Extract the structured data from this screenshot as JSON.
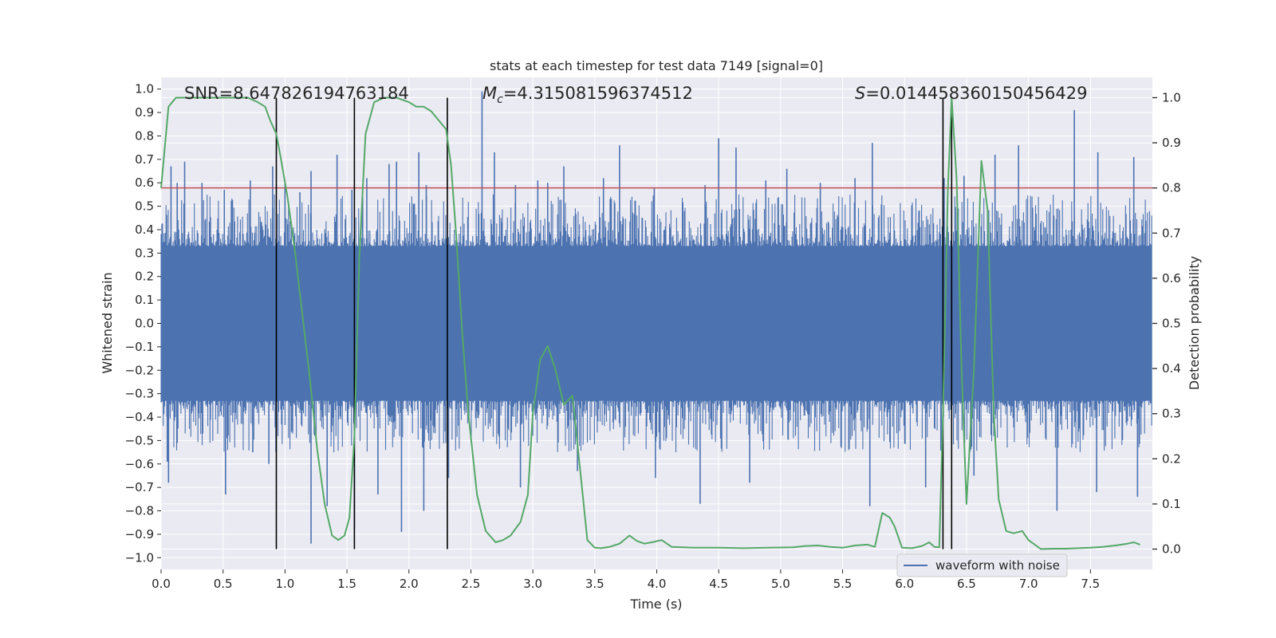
{
  "chart_data": {
    "type": "line",
    "title": "stats at each timestep for test data 7149 [signal=0]",
    "xlabel": "Time (s)",
    "ylabel_left": "Whitened strain",
    "ylabel_right": "Detection probability",
    "xlim": [
      0.0,
      8.0
    ],
    "ylim_left": [
      -1.05,
      1.05
    ],
    "ylim_right": [
      -0.045,
      1.045
    ],
    "x_ticks": [
      "0.0",
      "0.5",
      "1.0",
      "1.5",
      "2.0",
      "2.5",
      "3.0",
      "3.5",
      "4.0",
      "4.5",
      "5.0",
      "5.5",
      "6.0",
      "6.5",
      "7.0",
      "7.5"
    ],
    "y_ticks_left": [
      "1.0",
      "0.9",
      "0.8",
      "0.7",
      "0.6",
      "0.5",
      "0.4",
      "0.3",
      "0.2",
      "0.1",
      "0.0",
      "−0.1",
      "−0.2",
      "−0.3",
      "−0.4",
      "−0.5",
      "−0.6",
      "−0.7",
      "−0.8",
      "−0.9",
      "−1.0"
    ],
    "y_ticks_right": [
      "1.0",
      "0.9",
      "0.8",
      "0.7",
      "0.6",
      "0.5",
      "0.4",
      "0.3",
      "0.2",
      "0.1",
      "0.0"
    ],
    "annotations": {
      "snr": "SNR=8.647826194763184",
      "mc_symbol": "M",
      "mc_sub": "c",
      "mc_value": "=4.315081596374512",
      "s_symbol": "S",
      "s_value": "=0.014458360150456429"
    },
    "threshold": 0.8,
    "vlines": [
      0.93,
      1.56,
      2.31,
      6.31,
      6.38
    ],
    "legend": {
      "label": "waveform with noise",
      "position": "lower right"
    },
    "noise_series": {
      "name": "waveform with noise",
      "color": "#4c72b0",
      "core_amplitude": 0.33,
      "peaks_pos": [
        [
          0.08,
          0.67
        ],
        [
          0.13,
          0.6
        ],
        [
          0.19,
          0.69
        ],
        [
          0.33,
          0.6
        ],
        [
          0.51,
          0.57
        ],
        [
          0.72,
          0.61
        ],
        [
          0.9,
          0.67
        ],
        [
          1.0,
          0.6
        ],
        [
          1.12,
          0.56
        ],
        [
          1.21,
          0.65
        ],
        [
          1.42,
          0.72
        ],
        [
          1.54,
          0.57
        ],
        [
          1.66,
          0.62
        ],
        [
          1.84,
          0.68
        ],
        [
          1.9,
          0.69
        ],
        [
          2.08,
          0.73
        ],
        [
          2.14,
          0.59
        ],
        [
          2.59,
          0.99
        ],
        [
          2.69,
          0.73
        ],
        [
          2.86,
          0.59
        ],
        [
          3.04,
          0.61
        ],
        [
          3.12,
          0.6
        ],
        [
          3.25,
          0.67
        ],
        [
          3.57,
          0.62
        ],
        [
          3.7,
          0.76
        ],
        [
          3.98,
          0.58
        ],
        [
          4.39,
          0.59
        ],
        [
          4.5,
          0.79
        ],
        [
          4.64,
          0.75
        ],
        [
          4.88,
          0.61
        ],
        [
          5.05,
          0.66
        ],
        [
          5.32,
          0.6
        ],
        [
          5.6,
          0.62
        ],
        [
          5.74,
          0.77
        ],
        [
          6.32,
          0.62
        ],
        [
          6.48,
          0.63
        ],
        [
          6.73,
          0.72
        ],
        [
          6.92,
          0.76
        ],
        [
          7.37,
          0.91
        ],
        [
          7.56,
          0.73
        ],
        [
          7.85,
          0.71
        ]
      ],
      "peaks_neg": [
        [
          0.05,
          -0.59
        ],
        [
          0.06,
          -0.68
        ],
        [
          0.52,
          -0.73
        ],
        [
          0.74,
          -0.55
        ],
        [
          0.87,
          -0.6
        ],
        [
          1.21,
          -0.94
        ],
        [
          1.34,
          -0.78
        ],
        [
          1.56,
          -0.88
        ],
        [
          1.75,
          -0.73
        ],
        [
          1.94,
          -0.89
        ],
        [
          2.12,
          -0.8
        ],
        [
          2.32,
          -0.66
        ],
        [
          2.9,
          -0.7
        ],
        [
          3.36,
          -0.63
        ],
        [
          3.99,
          -0.66
        ],
        [
          4.35,
          -0.77
        ],
        [
          4.75,
          -0.68
        ],
        [
          5.72,
          -0.78
        ],
        [
          6.17,
          -0.7
        ],
        [
          6.56,
          -0.65
        ],
        [
          7.23,
          -0.8
        ],
        [
          7.55,
          -0.72
        ],
        [
          7.88,
          -0.74
        ]
      ]
    },
    "probability_series": {
      "name": "Detection probability",
      "color": "#55a868",
      "x": [
        0.0,
        0.06,
        0.12,
        0.2,
        0.3,
        0.4,
        0.5,
        0.6,
        0.7,
        0.78,
        0.84,
        0.88,
        0.93,
        0.97,
        1.02,
        1.08,
        1.14,
        1.2,
        1.26,
        1.32,
        1.38,
        1.43,
        1.48,
        1.52,
        1.56,
        1.6,
        1.65,
        1.72,
        1.8,
        1.9,
        2.0,
        2.06,
        2.12,
        2.18,
        2.24,
        2.3,
        2.34,
        2.38,
        2.43,
        2.48,
        2.55,
        2.62,
        2.7,
        2.76,
        2.82,
        2.9,
        2.96,
        3.0,
        3.06,
        3.12,
        3.18,
        3.25,
        3.32,
        3.38,
        3.44,
        3.5,
        3.55,
        3.62,
        3.7,
        3.78,
        3.84,
        3.9,
        3.96,
        4.04,
        4.12,
        4.3,
        4.5,
        4.7,
        4.9,
        5.1,
        5.2,
        5.3,
        5.4,
        5.5,
        5.6,
        5.7,
        5.76,
        5.82,
        5.88,
        5.92,
        5.98,
        6.06,
        6.14,
        6.2,
        6.24,
        6.28,
        6.31,
        6.35,
        6.38,
        6.42,
        6.46,
        6.5,
        6.56,
        6.62,
        6.67,
        6.72,
        6.76,
        6.82,
        6.88,
        6.95,
        7.0,
        7.1,
        7.2,
        7.3,
        7.4,
        7.5,
        7.6,
        7.7,
        7.8,
        7.85,
        7.9
      ],
      "y": [
        0.8,
        0.98,
        1.0,
        1.0,
        1.0,
        1.0,
        1.0,
        1.0,
        1.0,
        0.99,
        0.98,
        0.95,
        0.92,
        0.86,
        0.78,
        0.66,
        0.52,
        0.38,
        0.22,
        0.1,
        0.03,
        0.02,
        0.03,
        0.07,
        0.25,
        0.65,
        0.92,
        0.99,
        1.0,
        1.0,
        0.99,
        0.98,
        0.98,
        0.97,
        0.95,
        0.93,
        0.85,
        0.7,
        0.48,
        0.3,
        0.12,
        0.04,
        0.015,
        0.02,
        0.03,
        0.06,
        0.12,
        0.3,
        0.42,
        0.45,
        0.4,
        0.32,
        0.34,
        0.18,
        0.02,
        0.003,
        0.002,
        0.005,
        0.012,
        0.03,
        0.018,
        0.012,
        0.015,
        0.02,
        0.005,
        0.003,
        0.003,
        0.002,
        0.003,
        0.004,
        0.007,
        0.008,
        0.005,
        0.003,
        0.008,
        0.01,
        0.005,
        0.08,
        0.07,
        0.05,
        0.003,
        0.002,
        0.007,
        0.015,
        0.005,
        0.004,
        0.3,
        0.8,
        1.0,
        0.82,
        0.4,
        0.1,
        0.4,
        0.86,
        0.75,
        0.3,
        0.11,
        0.04,
        0.035,
        0.04,
        0.02,
        0.0,
        0.001,
        0.001,
        0.002,
        0.003,
        0.005,
        0.008,
        0.012,
        0.015,
        0.01
      ]
    }
  }
}
